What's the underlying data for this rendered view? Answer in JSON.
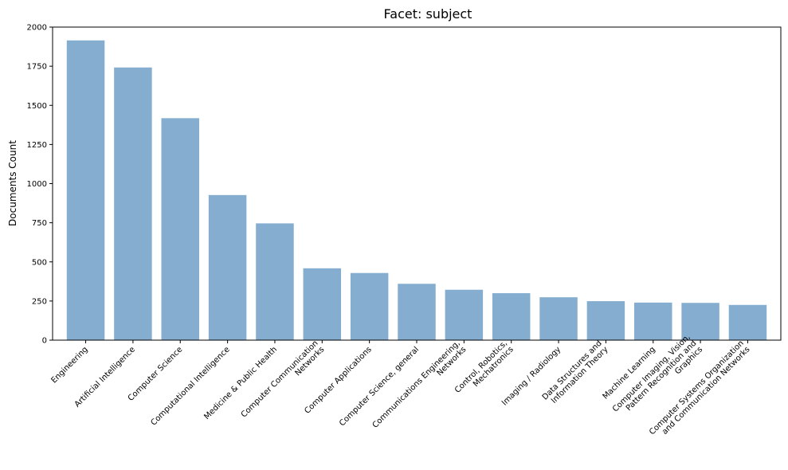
{
  "chart_data": {
    "type": "bar",
    "title": "Facet: subject",
    "xlabel": "",
    "ylabel": "Documents Count",
    "categories": [
      [
        "Engineering"
      ],
      [
        "Artificial Intelligence"
      ],
      [
        "Computer Science"
      ],
      [
        "Computational Intelligence"
      ],
      [
        "Medicine & Public Health"
      ],
      [
        "Computer Communication",
        "Networks"
      ],
      [
        "Computer Applications"
      ],
      [
        "Computer Science, general"
      ],
      [
        "Communications Engineering,",
        "Networks"
      ],
      [
        "Control, Robotics,",
        "Mechatronics"
      ],
      [
        "Imaging / Radiology"
      ],
      [
        "Data Structures and",
        "Information Theory"
      ],
      [
        "Machine Learning"
      ],
      [
        "Computer Imaging, Vision,",
        "Pattern Recognition and",
        "Graphics"
      ],
      [
        "Computer Systems Organization",
        "and Communication Networks"
      ]
    ],
    "values": [
      1915,
      1742,
      1418,
      927,
      746,
      459,
      429,
      360,
      322,
      300,
      274,
      249,
      240,
      238,
      225
    ],
    "ylim": [
      0,
      2000
    ],
    "yticks": [
      0,
      250,
      500,
      750,
      1000,
      1250,
      1500,
      1750,
      2000
    ],
    "bar_color": "#84adcf",
    "grid": false,
    "legend": "none"
  }
}
